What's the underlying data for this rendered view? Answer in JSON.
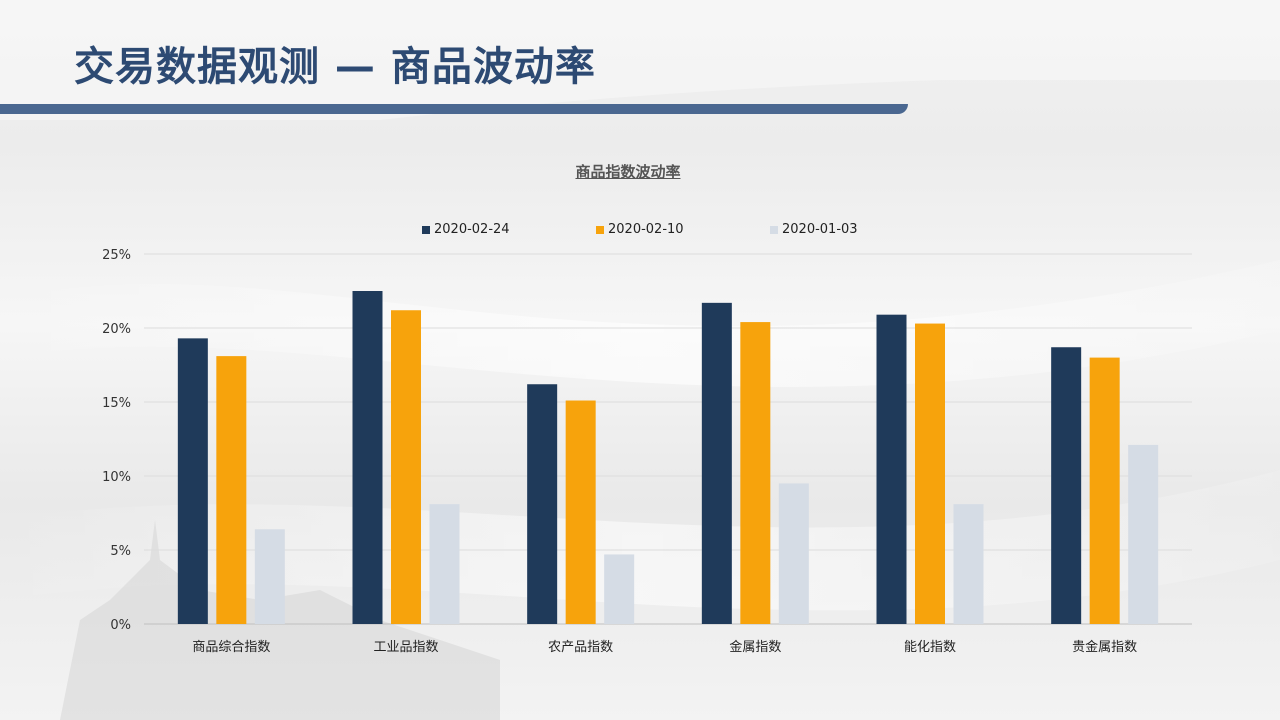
{
  "page": {
    "title": "交易数据观测 — 商品波动率"
  },
  "colors": {
    "title": "#2d4a73",
    "title_bar": "#4a6790",
    "series_1": "#1f3a5a",
    "series_2": "#f7a30c",
    "series_3": "#d5dce5"
  },
  "chart_data": {
    "type": "bar",
    "title": "商品指数波动率",
    "xlabel": "",
    "ylabel": "",
    "ylim": [
      0,
      25
    ],
    "yticks": [
      "0%",
      "5%",
      "10%",
      "15%",
      "20%",
      "25%"
    ],
    "grid": true,
    "legend_position": "top",
    "categories": [
      "商品综合指数",
      "工业品指数",
      "农产品指数",
      "金属指数",
      "能化指数",
      "贵金属指数"
    ],
    "series": [
      {
        "name": "2020-02-24",
        "values": [
          19.3,
          22.5,
          16.2,
          21.7,
          20.9,
          18.7
        ]
      },
      {
        "name": "2020-02-10",
        "values": [
          18.1,
          21.2,
          15.1,
          20.4,
          20.3,
          18.0
        ]
      },
      {
        "name": "2020-01-03",
        "values": [
          6.4,
          8.1,
          4.7,
          9.5,
          8.1,
          12.1
        ]
      }
    ]
  }
}
